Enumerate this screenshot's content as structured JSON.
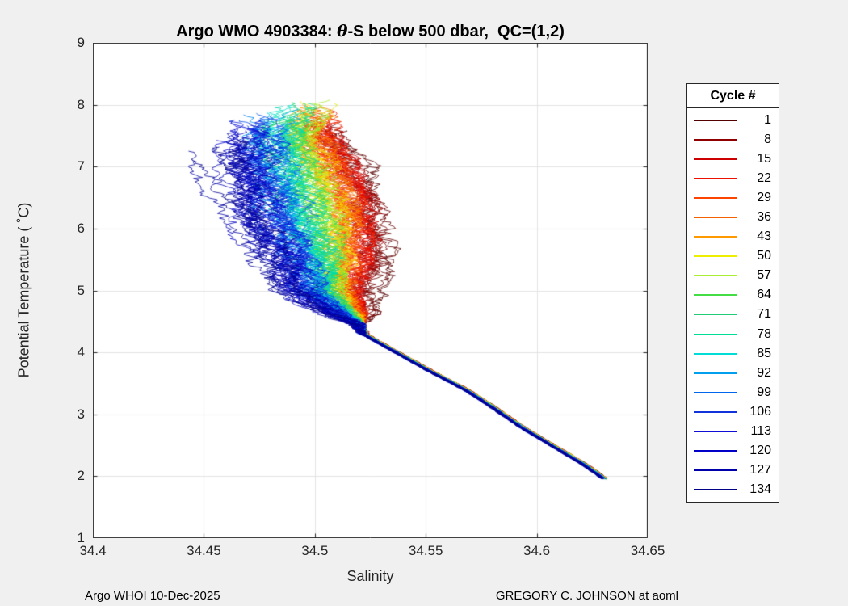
{
  "figure": {
    "background": "#F0F0F0",
    "title": {
      "prefix": "Argo WMO 4903384: ",
      "theta": "θ",
      "suffix": "-S below 500 dbar,  QC=(1,2)"
    },
    "footer_left": "Argo WHOI 10-Dec-2025",
    "footer_right": "GREGORY C. JOHNSON at aoml"
  },
  "chart_data": {
    "type": "line",
    "title": "Argo WMO 4903384: θ-S below 500 dbar,  QC=(1,2)",
    "xlabel": "Salinity",
    "ylabel": "Potential Temperature ( ˚C)",
    "xlim": [
      34.4,
      34.65
    ],
    "ylim": [
      1,
      9
    ],
    "xticks": [
      34.4,
      34.45,
      34.5,
      34.55,
      34.6,
      34.65
    ],
    "xtick_labels": [
      "34.4",
      "34.45",
      "34.5",
      "34.55",
      "34.6",
      "34.65"
    ],
    "yticks": [
      1,
      2,
      3,
      4,
      5,
      6,
      7,
      8,
      9
    ],
    "ytick_labels": [
      "1",
      "2",
      "3",
      "4",
      "5",
      "6",
      "7",
      "8",
      "9"
    ],
    "grid": true,
    "grid_color": "#E3E3E3",
    "axis_color": "#262626",
    "legend": {
      "title": "Cycle #",
      "position": "outside-right"
    },
    "total_cycles": 134,
    "legend_cycles": [
      1,
      8,
      15,
      22,
      29,
      36,
      43,
      50,
      57,
      64,
      71,
      78,
      85,
      92,
      99,
      106,
      113,
      120,
      127,
      134
    ],
    "colormap": "jet-reversed (cycle 1 dark red to cycle 134 dark blue)",
    "lower_branch_theta": [
      1.95,
      2.2,
      2.5,
      2.8,
      3.1,
      3.4,
      3.7,
      4.0,
      4.3,
      4.45
    ],
    "lower_branch_s": [
      34.631,
      34.621,
      34.607,
      34.593,
      34.581,
      34.568,
      34.552,
      34.537,
      34.522,
      34.52
    ],
    "upper_theta": [
      4.6,
      5.0,
      5.5,
      6.0,
      6.5,
      7.0,
      7.5,
      7.9
    ],
    "series": [
      {
        "cycle": 1,
        "color": "#550000",
        "theta_top": 7.8,
        "s": [
          34.528,
          34.528,
          34.532,
          34.53,
          34.527,
          34.522,
          34.512,
          34.507
        ]
      },
      {
        "cycle": 8,
        "color": "#900000",
        "theta_top": 7.9,
        "s": [
          34.522,
          34.519,
          34.524,
          34.523,
          34.521,
          34.515,
          34.508,
          34.506
        ]
      },
      {
        "cycle": 15,
        "color": "#CC0000",
        "theta_top": 7.95,
        "s": [
          34.521,
          34.518,
          34.521,
          34.521,
          34.518,
          34.513,
          34.505,
          34.504
        ]
      },
      {
        "cycle": 22,
        "color": "#EE1100",
        "theta_top": 8.0,
        "s": [
          34.521,
          34.516,
          34.519,
          34.518,
          34.515,
          34.51,
          34.503,
          34.503
        ]
      },
      {
        "cycle": 29,
        "color": "#FF4400",
        "theta_top": 8.05,
        "s": [
          34.52,
          34.514,
          34.517,
          34.515,
          34.513,
          34.507,
          34.501,
          34.502
        ]
      },
      {
        "cycle": 36,
        "color": "#F26000",
        "theta_top": 8.05,
        "s": [
          34.519,
          34.513,
          34.514,
          34.512,
          34.51,
          34.504,
          34.498,
          34.501
        ]
      },
      {
        "cycle": 43,
        "color": "#FF9900",
        "theta_top": 8.1,
        "s": [
          34.519,
          34.511,
          34.512,
          34.51,
          34.507,
          34.502,
          34.496,
          34.499
        ]
      },
      {
        "cycle": 50,
        "color": "#EEEE00",
        "theta_top": 8.1,
        "s": [
          34.518,
          34.509,
          34.51,
          34.507,
          34.504,
          34.499,
          34.494,
          34.498
        ]
      },
      {
        "cycle": 57,
        "color": "#AAEE33",
        "theta_top": 8.1,
        "s": [
          34.517,
          34.508,
          34.507,
          34.504,
          34.501,
          34.496,
          34.491,
          34.497
        ]
      },
      {
        "cycle": 64,
        "color": "#44DD44",
        "theta_top": 8.05,
        "s": [
          34.516,
          34.506,
          34.505,
          34.501,
          34.498,
          34.493,
          34.489,
          34.496
        ]
      },
      {
        "cycle": 71,
        "color": "#22CC77",
        "theta_top": 8.05,
        "s": [
          34.516,
          34.504,
          34.503,
          34.499,
          34.496,
          34.491,
          34.487,
          34.494
        ]
      },
      {
        "cycle": 78,
        "color": "#00DD99",
        "theta_top": 8.05,
        "s": [
          34.515,
          34.502,
          34.501,
          34.496,
          34.493,
          34.488,
          34.485,
          34.493
        ]
      },
      {
        "cycle": 85,
        "color": "#00DDD6",
        "theta_top": 8.0,
        "s": [
          34.514,
          34.501,
          34.498,
          34.493,
          34.49,
          34.485,
          34.482,
          34.492
        ]
      },
      {
        "cycle": 92,
        "color": "#00A0EE",
        "theta_top": 7.95,
        "s": [
          34.513,
          34.499,
          34.496,
          34.49,
          34.487,
          34.482,
          34.48,
          34.491
        ]
      },
      {
        "cycle": 99,
        "color": "#0066EE",
        "theta_top": 7.9,
        "s": [
          34.513,
          34.497,
          34.494,
          34.488,
          34.484,
          34.48,
          34.478,
          34.477
        ]
      },
      {
        "cycle": 106,
        "color": "#1133DD",
        "theta_top": 7.85,
        "s": [
          34.512,
          34.496,
          34.491,
          34.485,
          34.481,
          34.477,
          34.475,
          34.474
        ]
      },
      {
        "cycle": 113,
        "color": "#0F0FD8",
        "theta_top": 7.8,
        "s": [
          34.511,
          34.494,
          34.489,
          34.482,
          34.479,
          34.474,
          34.473,
          34.472
        ]
      },
      {
        "cycle": 120,
        "color": "#0000C8",
        "theta_top": 7.75,
        "s": [
          34.51,
          34.492,
          34.487,
          34.479,
          34.476,
          34.472,
          34.471,
          34.47
        ]
      },
      {
        "cycle": 127,
        "color": "#0000AA",
        "theta_top": 7.65,
        "s": [
          34.51,
          34.491,
          34.484,
          34.477,
          34.473,
          34.469,
          34.468,
          34.467
        ]
      },
      {
        "cycle": 134,
        "color": "#000088",
        "theta_top": 7.55,
        "s": [
          34.509,
          34.489,
          34.482,
          34.474,
          34.47,
          34.466,
          34.465,
          34.464
        ]
      }
    ]
  }
}
